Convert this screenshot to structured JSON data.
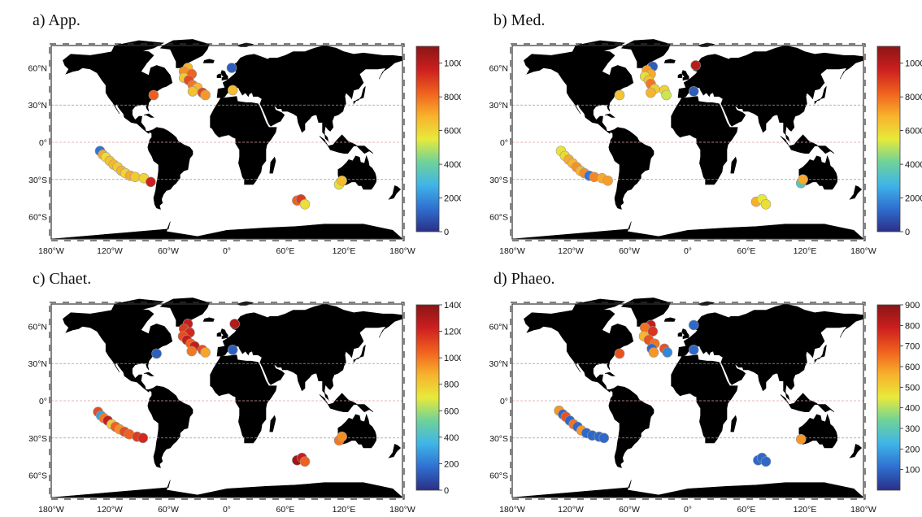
{
  "figure": {
    "lon_ticks": [
      "180°W",
      "120°W",
      "60°W",
      "0°",
      "60°E",
      "120°E",
      "180°W"
    ],
    "lat_ticks": [
      "60°N",
      "30°N",
      "0°",
      "30°S",
      "60°S"
    ],
    "colormap": [
      "#2b2f86",
      "#2f6fd0",
      "#3fb4e8",
      "#6ed29a",
      "#e8ea3a",
      "#f8b12c",
      "#f0601e",
      "#cc1f1f",
      "#8b1515"
    ],
    "land_color": "#000000",
    "ocean_color": "#ffffff",
    "marker_outline": "#9a9a9a"
  },
  "chart_data": [
    {
      "type": "scatter",
      "title": "a) App.",
      "cbar_ticks": [
        0,
        2000,
        4000,
        6000,
        8000,
        10000
      ],
      "clim": [
        0,
        11000
      ],
      "points": [
        {
          "lon": -75,
          "lat": 38,
          "v": 8300
        },
        {
          "lon": -40,
          "lat": 60,
          "v": 6800
        },
        {
          "lon": -44,
          "lat": 57,
          "v": 7400
        },
        {
          "lon": -36,
          "lat": 55,
          "v": 8200
        },
        {
          "lon": -44,
          "lat": 52,
          "v": 6300
        },
        {
          "lon": -39,
          "lat": 50,
          "v": 8700
        },
        {
          "lon": -35,
          "lat": 46,
          "v": 7900
        },
        {
          "lon": -30,
          "lat": 44,
          "v": 6700
        },
        {
          "lon": -35,
          "lat": 41,
          "v": 6500
        },
        {
          "lon": -25,
          "lat": 40,
          "v": 8800
        },
        {
          "lon": -22,
          "lat": 38,
          "v": 7300
        },
        {
          "lon": 5,
          "lat": 60,
          "v": 1000
        },
        {
          "lon": 6,
          "lat": 42,
          "v": 6600
        },
        {
          "lon": -130,
          "lat": -7,
          "v": 1500
        },
        {
          "lon": -127,
          "lat": -10,
          "v": 7000
        },
        {
          "lon": -124,
          "lat": -12,
          "v": 5800
        },
        {
          "lon": -120,
          "lat": -15,
          "v": 6500
        },
        {
          "lon": -116,
          "lat": -18,
          "v": 6700
        },
        {
          "lon": -112,
          "lat": -20,
          "v": 6200
        },
        {
          "lon": -108,
          "lat": -23,
          "v": 6800
        },
        {
          "lon": -104,
          "lat": -25,
          "v": 6000
        },
        {
          "lon": -99,
          "lat": -27,
          "v": 7000
        },
        {
          "lon": -94,
          "lat": -28,
          "v": 6300
        },
        {
          "lon": -85,
          "lat": -29,
          "v": 6000
        },
        {
          "lon": -78,
          "lat": -32,
          "v": 9600
        },
        {
          "lon": 115,
          "lat": -34,
          "v": 5800
        },
        {
          "lon": 118,
          "lat": -31,
          "v": 6600
        },
        {
          "lon": 72,
          "lat": -47,
          "v": 8200
        },
        {
          "lon": 76,
          "lat": -46,
          "v": 9000
        },
        {
          "lon": 80,
          "lat": -50,
          "v": 5800
        }
      ]
    },
    {
      "type": "scatter",
      "title": "b) Med.",
      "cbar_ticks": [
        0,
        2000,
        4000,
        6000,
        8000,
        10000
      ],
      "clim": [
        0,
        11000
      ],
      "points": [
        {
          "lon": -70,
          "lat": 38,
          "v": 6400
        },
        {
          "lon": -36,
          "lat": 61,
          "v": 1000
        },
        {
          "lon": -42,
          "lat": 58,
          "v": 7200
        },
        {
          "lon": -38,
          "lat": 55,
          "v": 7000
        },
        {
          "lon": -44,
          "lat": 53,
          "v": 5800
        },
        {
          "lon": -40,
          "lat": 50,
          "v": 6500
        },
        {
          "lon": -38,
          "lat": 47,
          "v": 7900
        },
        {
          "lon": -34,
          "lat": 43,
          "v": 6200
        },
        {
          "lon": -38,
          "lat": 40,
          "v": 6800
        },
        {
          "lon": -24,
          "lat": 42,
          "v": 6100
        },
        {
          "lon": -22,
          "lat": 38,
          "v": 5200
        },
        {
          "lon": 8,
          "lat": 62,
          "v": 10000
        },
        {
          "lon": 6,
          "lat": 41,
          "v": 1000
        },
        {
          "lon": -130,
          "lat": -7,
          "v": 5700
        },
        {
          "lon": -126,
          "lat": -11,
          "v": 5900
        },
        {
          "lon": -122,
          "lat": -14,
          "v": 7000
        },
        {
          "lon": -118,
          "lat": -17,
          "v": 6800
        },
        {
          "lon": -114,
          "lat": -20,
          "v": 7400
        },
        {
          "lon": -110,
          "lat": -23,
          "v": 6800
        },
        {
          "lon": -106,
          "lat": -25,
          "v": 7500
        },
        {
          "lon": -101,
          "lat": -27,
          "v": 1500
        },
        {
          "lon": -96,
          "lat": -28,
          "v": 7600
        },
        {
          "lon": -88,
          "lat": -29,
          "v": 7000
        },
        {
          "lon": -82,
          "lat": -31,
          "v": 7200
        },
        {
          "lon": 116,
          "lat": -33,
          "v": 3500
        },
        {
          "lon": 118,
          "lat": -30,
          "v": 7000
        },
        {
          "lon": 70,
          "lat": -48,
          "v": 6900
        },
        {
          "lon": 76,
          "lat": -46,
          "v": 5500
        },
        {
          "lon": 80,
          "lat": -50,
          "v": 5800
        }
      ]
    },
    {
      "type": "scatter",
      "title": "c) Chaet.",
      "cbar_ticks": [
        0,
        200,
        400,
        600,
        800,
        1000,
        1200,
        1400
      ],
      "clim": [
        0,
        1400
      ],
      "points": [
        {
          "lon": -72,
          "lat": 38,
          "v": 130
        },
        {
          "lon": -40,
          "lat": 62,
          "v": 1250
        },
        {
          "lon": -44,
          "lat": 58,
          "v": 1150
        },
        {
          "lon": -38,
          "lat": 55,
          "v": 1200
        },
        {
          "lon": -45,
          "lat": 52,
          "v": 1100
        },
        {
          "lon": -41,
          "lat": 49,
          "v": 1250
        },
        {
          "lon": -37,
          "lat": 46,
          "v": 1050
        },
        {
          "lon": -33,
          "lat": 44,
          "v": 1250
        },
        {
          "lon": -36,
          "lat": 40,
          "v": 1000
        },
        {
          "lon": -25,
          "lat": 41,
          "v": 1100
        },
        {
          "lon": -22,
          "lat": 39,
          "v": 900
        },
        {
          "lon": 8,
          "lat": 62,
          "v": 1300
        },
        {
          "lon": 6,
          "lat": 41,
          "v": 130
        },
        {
          "lon": -132,
          "lat": -9,
          "v": 1100
        },
        {
          "lon": -129,
          "lat": -12,
          "v": 300
        },
        {
          "lon": -126,
          "lat": -14,
          "v": 1000
        },
        {
          "lon": -122,
          "lat": -16,
          "v": 1250
        },
        {
          "lon": -118,
          "lat": -19,
          "v": 800
        },
        {
          "lon": -114,
          "lat": -21,
          "v": 1050
        },
        {
          "lon": -110,
          "lat": -23,
          "v": 950
        },
        {
          "lon": -105,
          "lat": -25,
          "v": 1100
        },
        {
          "lon": -100,
          "lat": -27,
          "v": 1050
        },
        {
          "lon": -92,
          "lat": -29,
          "v": 1150
        },
        {
          "lon": -86,
          "lat": -30,
          "v": 1200
        },
        {
          "lon": 115,
          "lat": -32,
          "v": 1000
        },
        {
          "lon": 118,
          "lat": -29,
          "v": 950
        },
        {
          "lon": 72,
          "lat": -48,
          "v": 1350
        },
        {
          "lon": 77,
          "lat": -46,
          "v": 1250
        },
        {
          "lon": 80,
          "lat": -49,
          "v": 1050
        }
      ]
    },
    {
      "type": "scatter",
      "title": "d) Phaeo.",
      "cbar_ticks": [
        100,
        200,
        300,
        400,
        500,
        600,
        700,
        800,
        900
      ],
      "clim": [
        0,
        900
      ],
      "points": [
        {
          "lon": -70,
          "lat": 38,
          "v": 700
        },
        {
          "lon": -38,
          "lat": 61,
          "v": 800
        },
        {
          "lon": -44,
          "lat": 59,
          "v": 650
        },
        {
          "lon": -36,
          "lat": 56,
          "v": 750
        },
        {
          "lon": -45,
          "lat": 52,
          "v": 550
        },
        {
          "lon": -40,
          "lat": 49,
          "v": 700
        },
        {
          "lon": -34,
          "lat": 46,
          "v": 650
        },
        {
          "lon": -37,
          "lat": 42,
          "v": 100
        },
        {
          "lon": -35,
          "lat": 39,
          "v": 600
        },
        {
          "lon": -24,
          "lat": 42,
          "v": 700
        },
        {
          "lon": -21,
          "lat": 39,
          "v": 150
        },
        {
          "lon": 6,
          "lat": 61,
          "v": 100
        },
        {
          "lon": 6,
          "lat": 41,
          "v": 100
        },
        {
          "lon": -132,
          "lat": -8,
          "v": 600
        },
        {
          "lon": -128,
          "lat": -11,
          "v": 100
        },
        {
          "lon": -125,
          "lat": -13,
          "v": 700
        },
        {
          "lon": -121,
          "lat": -16,
          "v": 100
        },
        {
          "lon": -117,
          "lat": -19,
          "v": 650
        },
        {
          "lon": -113,
          "lat": -21,
          "v": 100
        },
        {
          "lon": -109,
          "lat": -24,
          "v": 600
        },
        {
          "lon": -104,
          "lat": -26,
          "v": 100
        },
        {
          "lon": -98,
          "lat": -28,
          "v": 100
        },
        {
          "lon": -91,
          "lat": -29,
          "v": 100
        },
        {
          "lon": -86,
          "lat": -30,
          "v": 100
        },
        {
          "lon": 116,
          "lat": -31,
          "v": 600
        },
        {
          "lon": 72,
          "lat": -48,
          "v": 100
        },
        {
          "lon": 76,
          "lat": -46,
          "v": 100
        },
        {
          "lon": 80,
          "lat": -49,
          "v": 100
        }
      ]
    }
  ]
}
